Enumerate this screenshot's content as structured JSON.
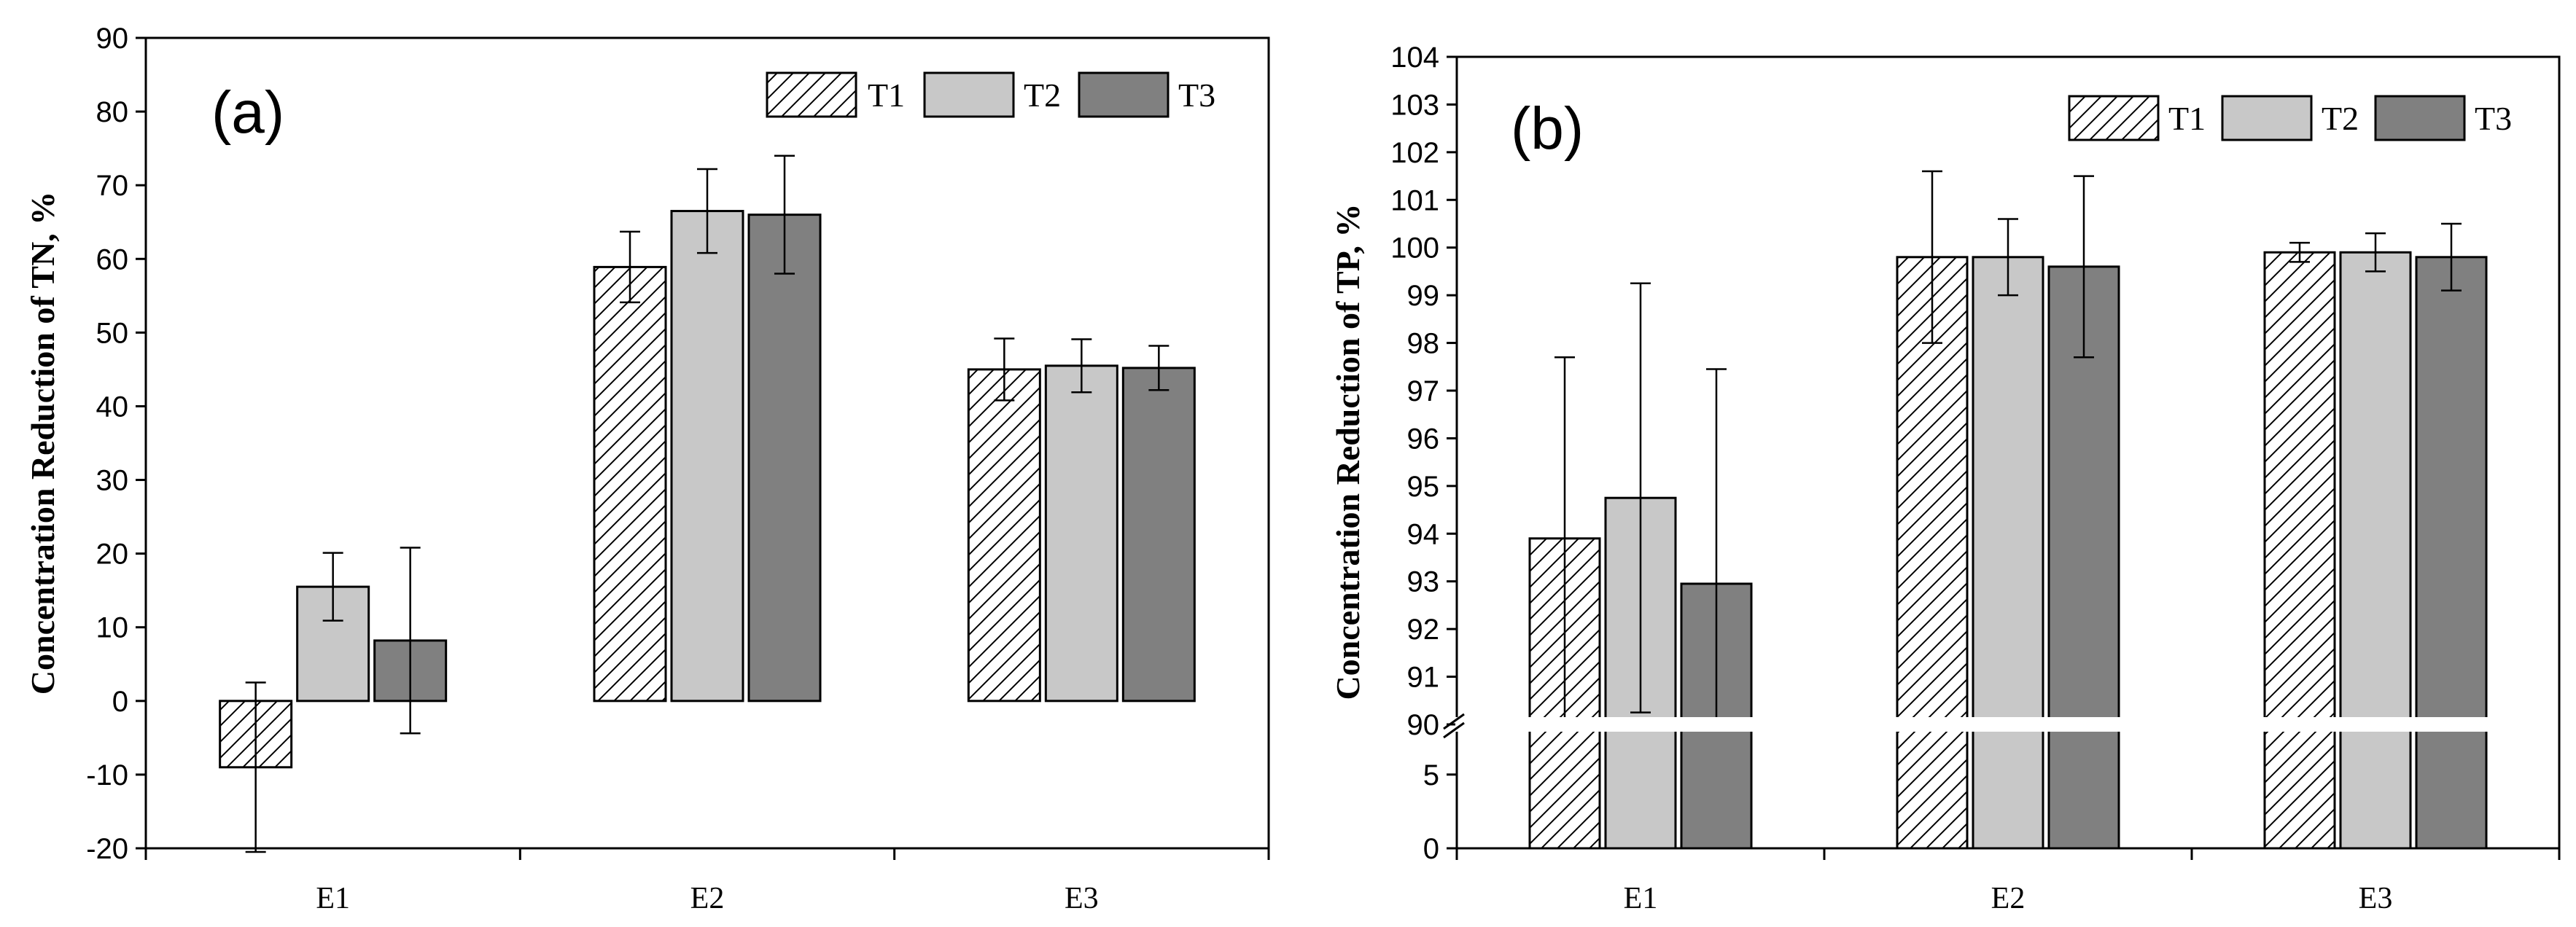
{
  "colors": {
    "T1": "hatch",
    "T2": "#c8c8c8",
    "T3": "#808080",
    "axis": "#000000"
  },
  "chart_data": [
    {
      "type": "bar",
      "panel_label": "(a)",
      "ylabel": "Concentration Reduction of  TN, %",
      "xlabel": "",
      "categories": [
        "E1",
        "E2",
        "E3"
      ],
      "ylim": [
        -20,
        90
      ],
      "yticks": [
        -20,
        -10,
        0,
        10,
        20,
        30,
        40,
        50,
        60,
        70,
        80,
        90
      ],
      "legend_position": "top-right",
      "series": [
        {
          "name": "T1",
          "values": [
            -9,
            58.9,
            45
          ],
          "errors": [
            11.5,
            4.8,
            4.2
          ]
        },
        {
          "name": "T2",
          "values": [
            15.5,
            66.5,
            45.5
          ],
          "errors": [
            4.6,
            5.7,
            3.6
          ]
        },
        {
          "name": "T3",
          "values": [
            8.2,
            66,
            45.2
          ],
          "errors": [
            12.6,
            8.0,
            3.0
          ]
        }
      ]
    },
    {
      "type": "bar",
      "panel_label": "(b)",
      "ylabel": "Concentration Reduction of  TP, %",
      "xlabel": "",
      "categories": [
        "E1",
        "E2",
        "E3"
      ],
      "ylim": [
        0,
        104
      ],
      "axis_break": [
        8.5,
        90
      ],
      "yticks": [
        0,
        5,
        90,
        91,
        92,
        93,
        94,
        95,
        96,
        97,
        98,
        99,
        100,
        101,
        102,
        103,
        104
      ],
      "legend_position": "top-right",
      "series": [
        {
          "name": "T1",
          "values": [
            93.9,
            99.8,
            99.9
          ],
          "errors": [
            3.8,
            1.8,
            0.2
          ]
        },
        {
          "name": "T2",
          "values": [
            94.75,
            99.8,
            99.9
          ],
          "errors": [
            4.5,
            0.8,
            0.4
          ]
        },
        {
          "name": "T3",
          "values": [
            92.95,
            99.6,
            99.8
          ],
          "errors": [
            4.5,
            1.9,
            0.7
          ]
        }
      ]
    }
  ]
}
